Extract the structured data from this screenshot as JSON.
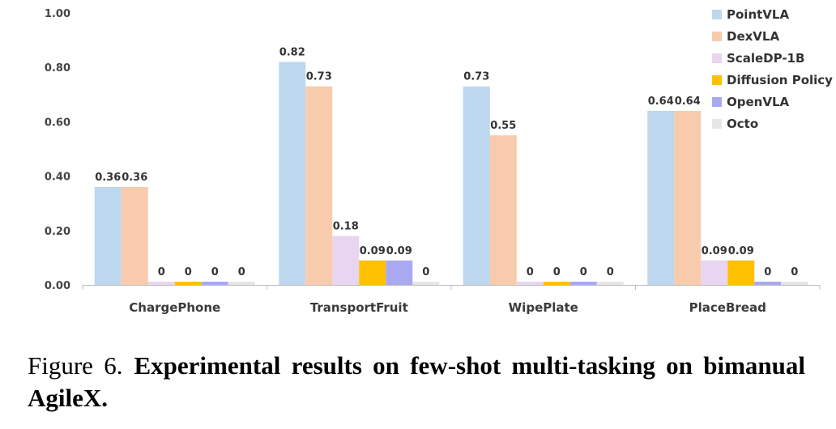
{
  "chart_data": {
    "type": "bar",
    "categories": [
      "ChargePhone",
      "TransportFruit",
      "WipePlate",
      "PlaceBread"
    ],
    "series": [
      {
        "name": "PointVLA",
        "color": "#bdd7ee",
        "values": [
          0.36,
          0.82,
          0.73,
          0.64
        ],
        "labels": [
          "0.36",
          "0.82",
          "0.73",
          "0.64"
        ]
      },
      {
        "name": "DexVLA",
        "color": "#f8cbad",
        "values": [
          0.36,
          0.73,
          0.55,
          0.64
        ],
        "labels": [
          "0.36",
          "0.73",
          "0.55",
          "0.64"
        ]
      },
      {
        "name": "ScaleDP-1B",
        "color": "#e8d5f0",
        "values": [
          0,
          0.18,
          0,
          0.09
        ],
        "labels": [
          "0",
          "0.18",
          "0",
          "0.09"
        ]
      },
      {
        "name": "Diffusion Policy",
        "color": "#ffc000",
        "values": [
          0,
          0.09,
          0,
          0.09
        ],
        "labels": [
          "0",
          "0.09",
          "0",
          "0.09"
        ]
      },
      {
        "name": "OpenVLA",
        "color": "#a9a9f2",
        "values": [
          0,
          0.09,
          0,
          0
        ],
        "labels": [
          "0",
          "0.09",
          "0",
          "0"
        ]
      },
      {
        "name": "Octo",
        "color": "#e6e6e6",
        "values": [
          0,
          0,
          0,
          0
        ],
        "labels": [
          "0",
          "0",
          "0",
          "0"
        ]
      }
    ],
    "y_ticks": [
      "0.00",
      "0.20",
      "0.40",
      "0.60",
      "0.80",
      "1.00"
    ],
    "ylim": [
      0,
      1.0
    ],
    "grid": false,
    "legend_position": "top-right"
  },
  "caption": {
    "label": "Figure 6.",
    "text": "Experimental results on few-shot multi-tasking on bimanual AgileX."
  }
}
